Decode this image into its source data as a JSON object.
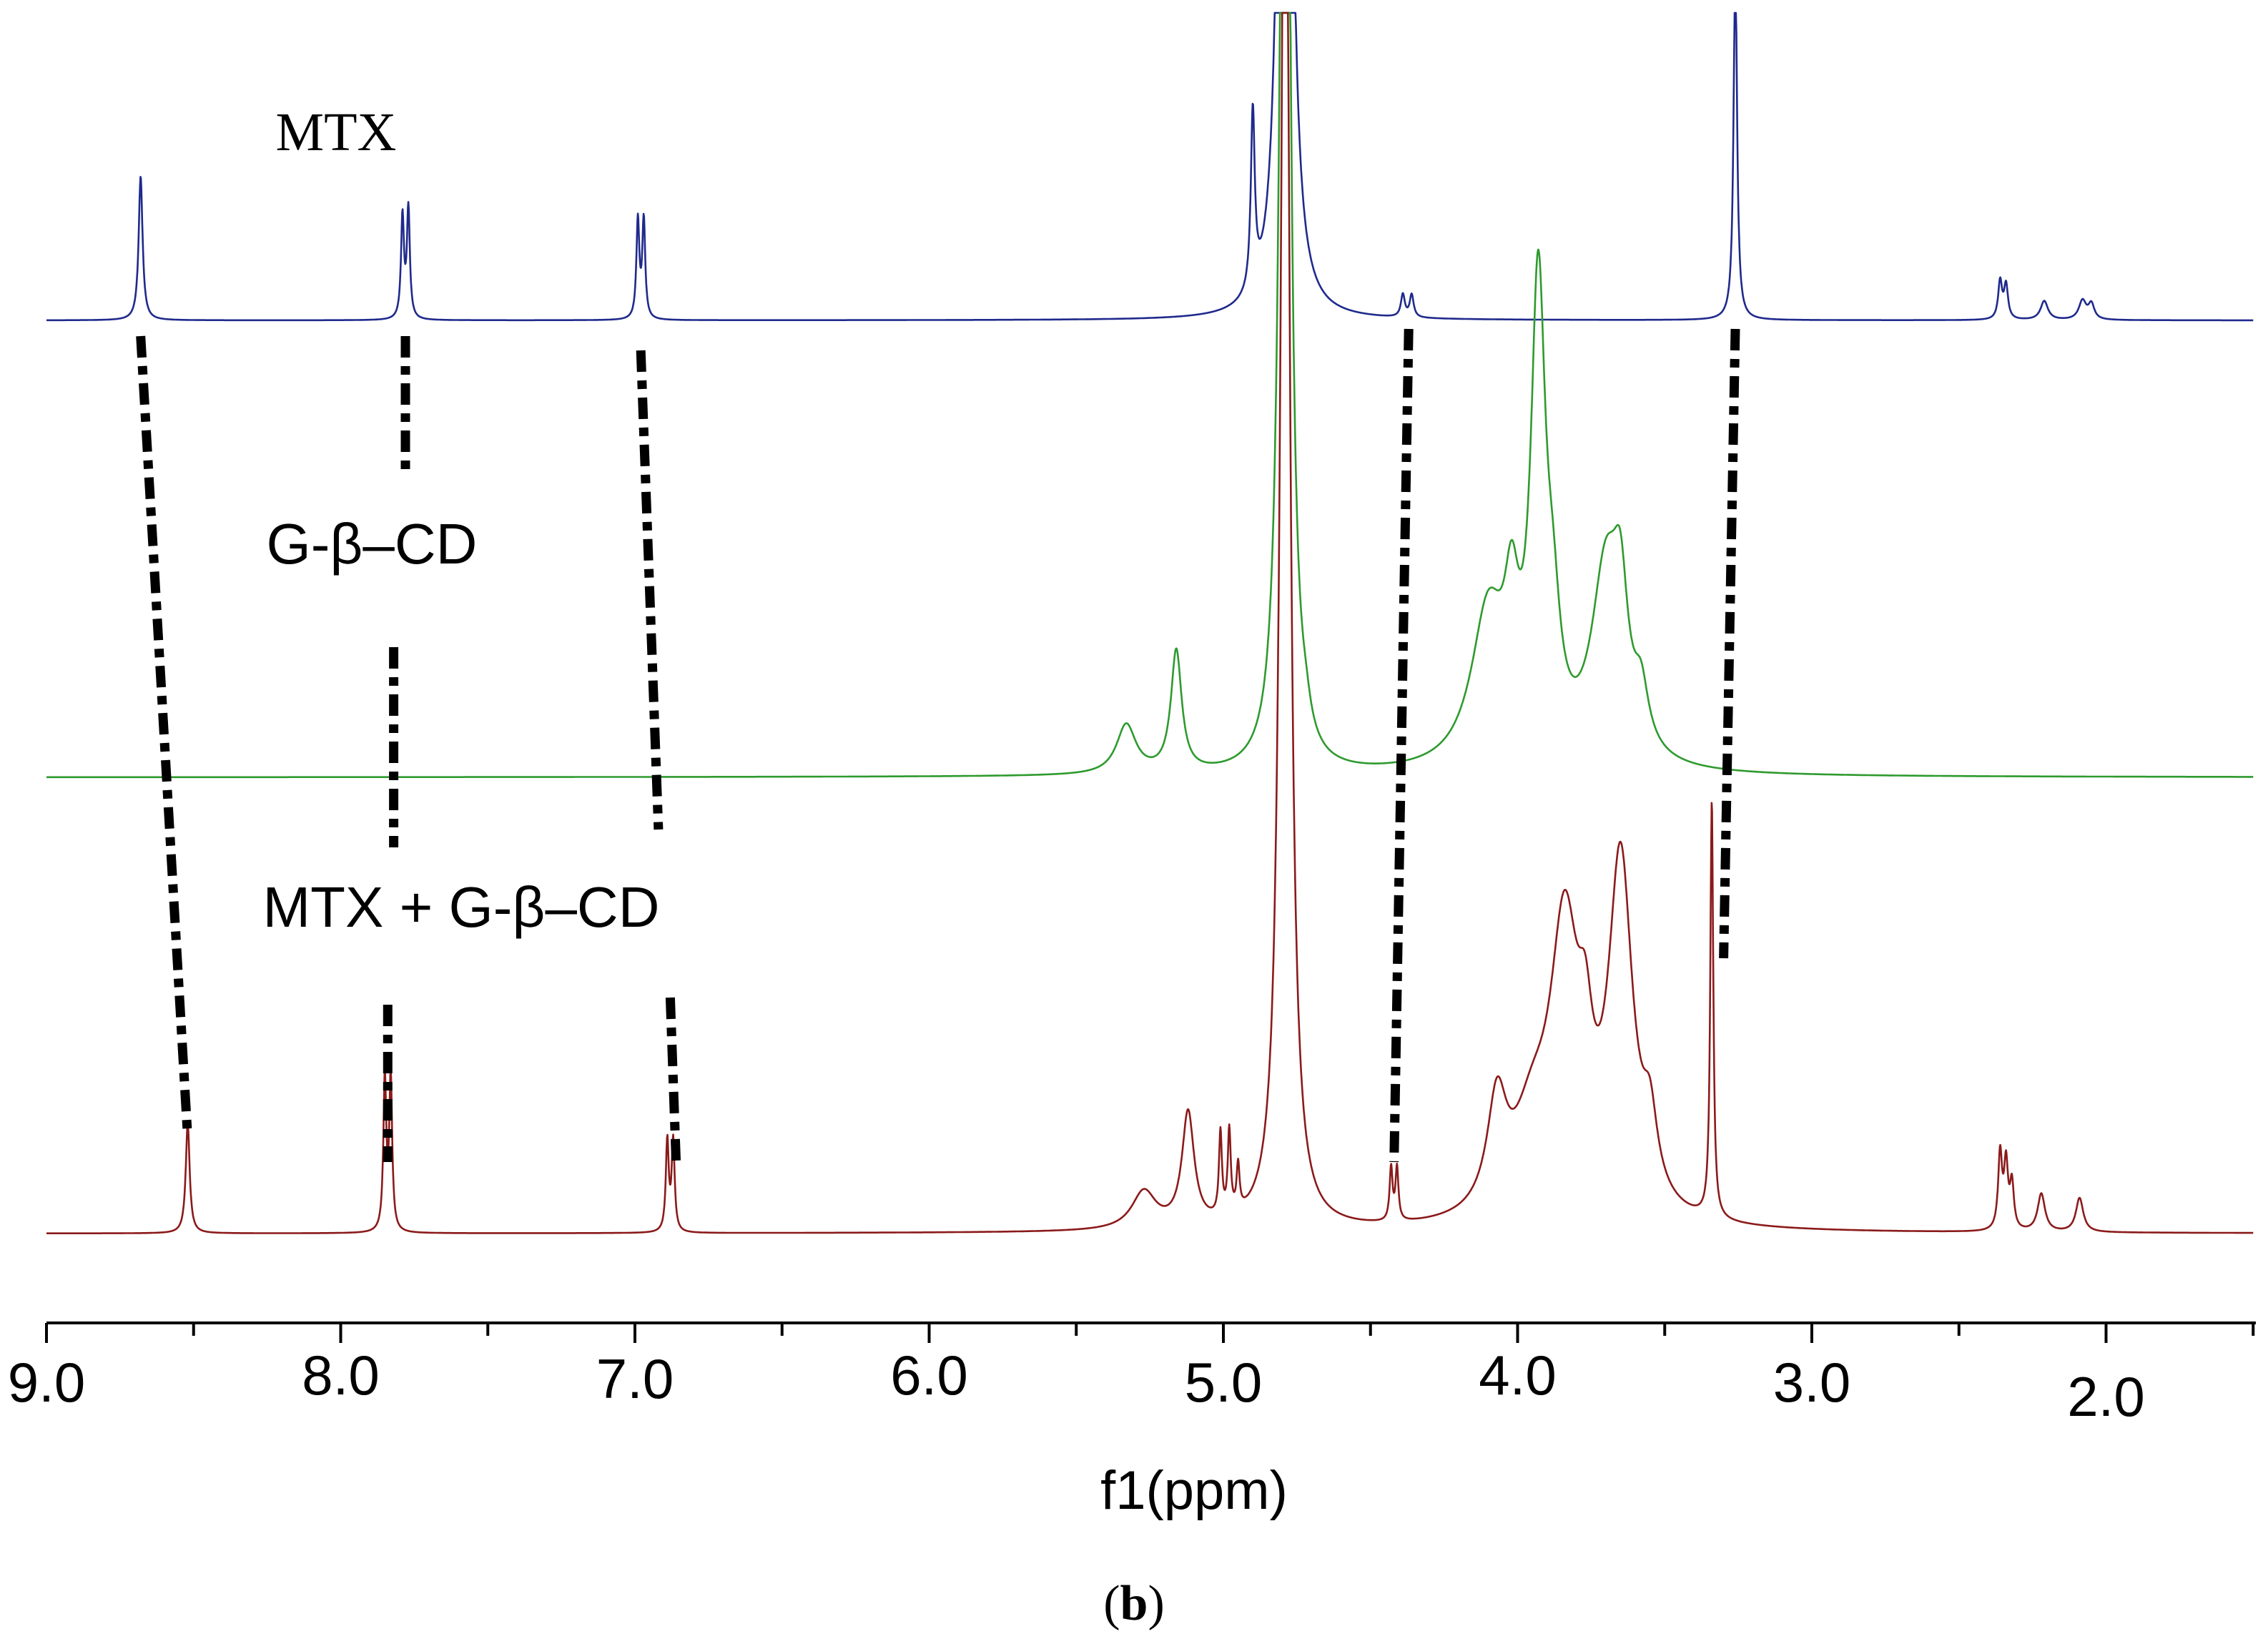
{
  "chart_data": {
    "type": "line",
    "xlabel": "f1(ppm)",
    "x_reversed": true,
    "xlim": [
      9.0,
      1.5
    ],
    "x_ticks": [
      "9.0",
      "8.0",
      "7.0",
      "6.0",
      "5.0",
      "4.0",
      "3.0",
      "2.0"
    ],
    "x_tick_values": [
      9.0,
      8.0,
      7.0,
      6.0,
      5.0,
      4.0,
      3.0,
      2.0
    ],
    "panel_label": "(b)",
    "panel_label_bold": "b",
    "solvent_peak_ppm": 4.79,
    "series": [
      {
        "name": "MTX",
        "color": "#1f2a8c",
        "peaks": [
          {
            "ppm": 8.68,
            "height": 0.38,
            "width": 0.008
          },
          {
            "ppm": 7.79,
            "height": 0.27,
            "width": 0.006
          },
          {
            "ppm": 7.77,
            "height": 0.29,
            "width": 0.006
          },
          {
            "ppm": 6.99,
            "height": 0.26,
            "width": 0.006
          },
          {
            "ppm": 6.97,
            "height": 0.26,
            "width": 0.006
          },
          {
            "ppm": 4.9,
            "height": 0.47,
            "width": 0.008
          },
          {
            "ppm": 4.79,
            "height": 4.0,
            "width": 0.018
          },
          {
            "ppm": 4.39,
            "height": 0.06,
            "width": 0.008
          },
          {
            "ppm": 4.36,
            "height": 0.06,
            "width": 0.008
          },
          {
            "ppm": 3.26,
            "height": 0.95,
            "width": 0.007
          },
          {
            "ppm": 2.36,
            "height": 0.1,
            "width": 0.008
          },
          {
            "ppm": 2.34,
            "height": 0.09,
            "width": 0.008
          },
          {
            "ppm": 2.21,
            "height": 0.05,
            "width": 0.015
          },
          {
            "ppm": 2.08,
            "height": 0.05,
            "width": 0.015
          },
          {
            "ppm": 2.05,
            "height": 0.04,
            "width": 0.012
          }
        ]
      },
      {
        "name": "G-β–CD",
        "color": "#2e9a2e",
        "peaks": [
          {
            "ppm": 5.33,
            "height": 0.13,
            "width": 0.04
          },
          {
            "ppm": 5.16,
            "height": 0.32,
            "width": 0.022
          },
          {
            "ppm": 4.79,
            "height": 4.0,
            "width": 0.018
          },
          {
            "ppm": 4.72,
            "height": 0.05,
            "width": 0.02
          },
          {
            "ppm": 4.1,
            "height": 0.4,
            "width": 0.07
          },
          {
            "ppm": 4.02,
            "height": 0.3,
            "width": 0.03
          },
          {
            "ppm": 3.93,
            "height": 1.2,
            "width": 0.03
          },
          {
            "ppm": 3.88,
            "height": 0.25,
            "width": 0.03
          },
          {
            "ppm": 3.7,
            "height": 0.5,
            "width": 0.06
          },
          {
            "ppm": 3.65,
            "height": 0.3,
            "width": 0.03
          },
          {
            "ppm": 3.58,
            "height": 0.14,
            "width": 0.03
          }
        ]
      },
      {
        "name": "MTX + G-β–CD",
        "color": "#8b1a1a",
        "peaks": [
          {
            "ppm": 8.52,
            "height": 0.29,
            "width": 0.008
          },
          {
            "ppm": 7.85,
            "height": 0.4,
            "width": 0.006
          },
          {
            "ppm": 7.83,
            "height": 0.4,
            "width": 0.006
          },
          {
            "ppm": 6.89,
            "height": 0.24,
            "width": 0.006
          },
          {
            "ppm": 6.87,
            "height": 0.24,
            "width": 0.006
          },
          {
            "ppm": 5.27,
            "height": 0.1,
            "width": 0.05
          },
          {
            "ppm": 5.12,
            "height": 0.3,
            "width": 0.025
          },
          {
            "ppm": 5.01,
            "height": 0.22,
            "width": 0.006
          },
          {
            "ppm": 4.98,
            "height": 0.22,
            "width": 0.006
          },
          {
            "ppm": 4.95,
            "height": 0.12,
            "width": 0.006
          },
          {
            "ppm": 4.79,
            "height": 4.2,
            "width": 0.018
          },
          {
            "ppm": 4.43,
            "height": 0.14,
            "width": 0.006
          },
          {
            "ppm": 4.41,
            "height": 0.14,
            "width": 0.006
          },
          {
            "ppm": 4.07,
            "height": 0.28,
            "width": 0.04
          },
          {
            "ppm": 3.95,
            "height": 0.22,
            "width": 0.08
          },
          {
            "ppm": 3.84,
            "height": 0.72,
            "width": 0.06
          },
          {
            "ppm": 3.77,
            "height": 0.25,
            "width": 0.03
          },
          {
            "ppm": 3.65,
            "height": 0.92,
            "width": 0.05
          },
          {
            "ppm": 3.55,
            "height": 0.18,
            "width": 0.03
          },
          {
            "ppm": 3.34,
            "height": 1.1,
            "width": 0.006
          },
          {
            "ppm": 2.36,
            "height": 0.2,
            "width": 0.008
          },
          {
            "ppm": 2.34,
            "height": 0.17,
            "width": 0.008
          },
          {
            "ppm": 2.32,
            "height": 0.12,
            "width": 0.008
          },
          {
            "ppm": 2.22,
            "height": 0.1,
            "width": 0.015
          },
          {
            "ppm": 2.09,
            "height": 0.09,
            "width": 0.015
          }
        ]
      }
    ],
    "correlation_lines": [
      {
        "ppm_top": 8.68,
        "ppm_bottom": 8.52
      },
      {
        "ppm_top": 7.78,
        "ppm_bottom": 7.84
      },
      {
        "ppm_top": 6.98,
        "ppm_bottom": 6.88
      },
      {
        "ppm_top": 4.37,
        "ppm_bottom": 4.42
      },
      {
        "ppm_top": 3.26,
        "ppm_bottom": 3.34
      }
    ]
  }
}
